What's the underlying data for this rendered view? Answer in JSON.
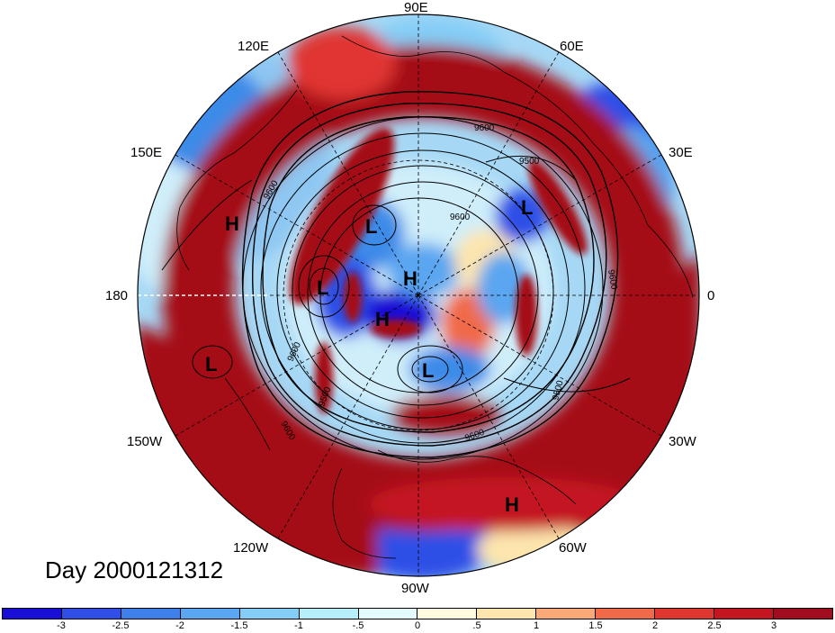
{
  "map": {
    "lon_labels": {
      "lon_90e": "90E",
      "lon_60e": "60E",
      "lon_30e": "30E",
      "lon_0": "0",
      "lon_30w": "30W",
      "lon_60w": "60W",
      "lon_90w": "90W",
      "lon_120w": "120W",
      "lon_150w": "150W",
      "lon_180": "180",
      "lon_150e": "150E",
      "lon_120e": "120E"
    },
    "pressure_centers": [
      "H",
      "L",
      "L",
      "H",
      "H",
      "L",
      "L",
      "L",
      "H"
    ],
    "contour_labels": [
      "9600",
      "9500",
      "9600",
      "9600",
      "9600",
      "9600",
      "9500",
      "9600",
      "9500",
      "9600"
    ],
    "colors": {
      "deep_red": "#a50f15",
      "red": "#d7301f",
      "deep_blue": "#1f2fd0",
      "blue": "#3d8be8",
      "light_blue": "#a6d8f5",
      "pale": "#fff4d6"
    }
  },
  "title": "Day 2000121312",
  "colorbar": {
    "ticks": [
      "-3",
      "-2.5",
      "-2",
      "-1.5",
      "-1",
      "-.5",
      "0",
      ".5",
      "1",
      "1.5",
      "2",
      "2.5",
      "3"
    ],
    "colors": [
      "#1a0fd6",
      "#2f4fe6",
      "#3f7fea",
      "#5aa6f0",
      "#84cdf6",
      "#b6eefb",
      "#e2fbfd",
      "#fffbe0",
      "#fde5ad",
      "#f9a977",
      "#f06a4a",
      "#e03630",
      "#c41620",
      "#a10d1e"
    ]
  }
}
